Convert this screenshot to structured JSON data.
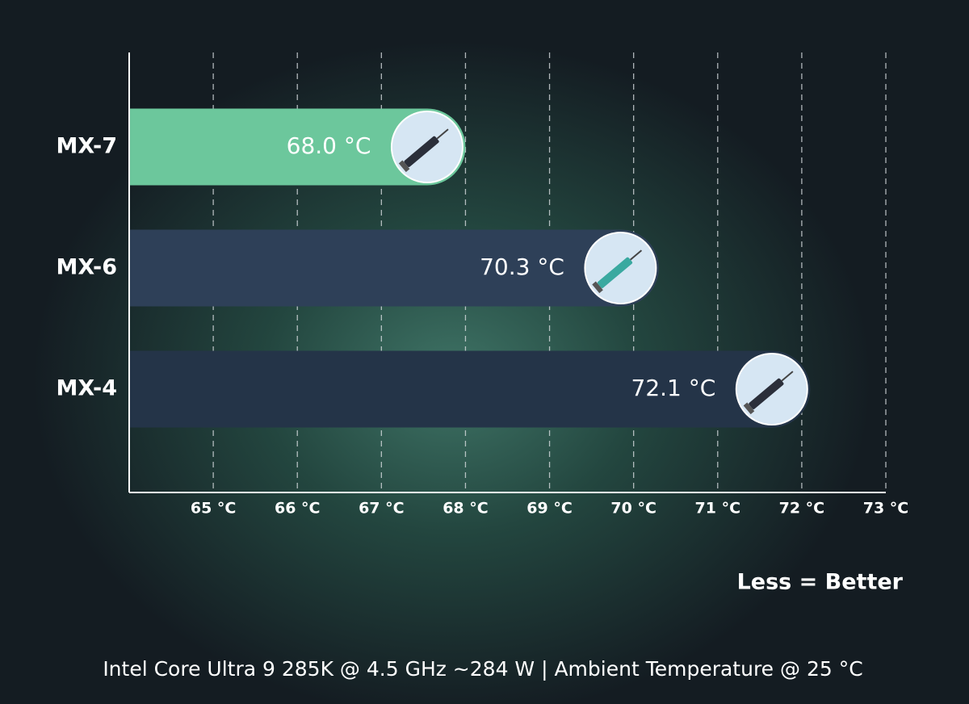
{
  "chart_data": {
    "type": "barh",
    "categories": [
      "MX-7",
      "MX-6",
      "MX-4"
    ],
    "values": [
      68.0,
      70.3,
      72.1
    ],
    "value_labels": [
      "68.0 °C",
      "70.3 °C",
      "72.1 °C"
    ],
    "colors": [
      "#6cc79c",
      "#2e4058",
      "#243448"
    ],
    "xlim": [
      64,
      73
    ],
    "xticks": [
      {
        "value": 65,
        "label": "65 °C"
      },
      {
        "value": 66,
        "label": "66 °C"
      },
      {
        "value": 67,
        "label": "67 °C"
      },
      {
        "value": 68,
        "label": "68 °C"
      },
      {
        "value": 69,
        "label": "69 °C"
      },
      {
        "value": 70,
        "label": "70 °C"
      },
      {
        "value": 71,
        "label": "71 °C"
      },
      {
        "value": 72,
        "label": "72 °C"
      },
      {
        "value": 73,
        "label": "73 °C"
      }
    ],
    "grid": true,
    "annotation": "Less = Better",
    "footnote": "Intel Core Ultra 9 285K @ 4.5 GHz ~284 W | Ambient Temperature @ 25 °C"
  }
}
